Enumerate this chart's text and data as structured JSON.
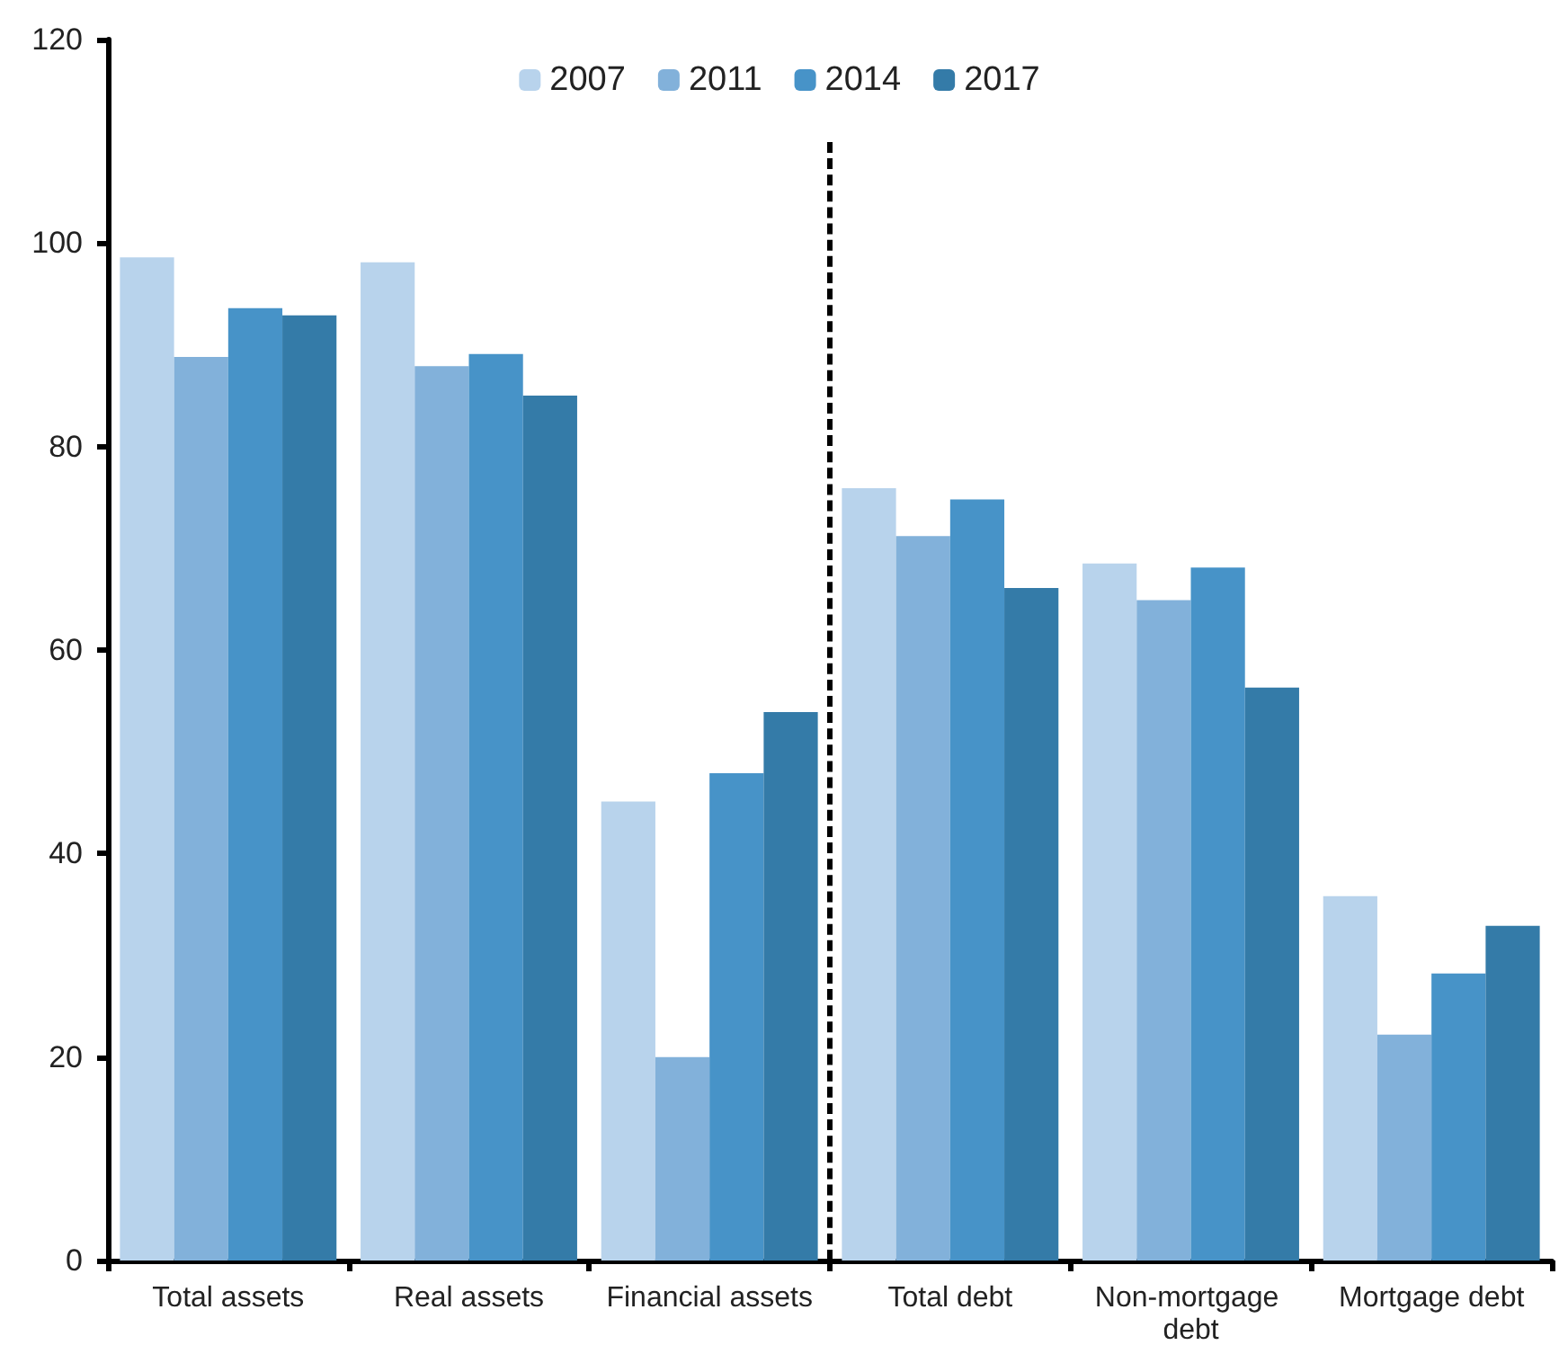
{
  "chart_data": {
    "type": "bar",
    "categories": [
      "Total assets",
      "Real assets",
      "Financial assets",
      "Total debt",
      "Non-mortgage debt",
      "Mortgage debt"
    ],
    "series": [
      {
        "name": "2007",
        "color": "#b8d3ec",
        "values": [
          98.6,
          98.1,
          45.1,
          75.9,
          68.5,
          35.8
        ]
      },
      {
        "name": "2011",
        "color": "#82b1da",
        "values": [
          88.8,
          87.9,
          20,
          71.2,
          64.9,
          22.2
        ]
      },
      {
        "name": "2014",
        "color": "#4793c8",
        "values": [
          93.6,
          89.1,
          47.9,
          74.8,
          68.1,
          28.2
        ]
      },
      {
        "name": "2017",
        "color": "#347ba8",
        "values": [
          92.9,
          85.0,
          53.9,
          66.1,
          56.3,
          32.9
        ]
      }
    ],
    "ylim": [
      0,
      120
    ],
    "yticks": [
      0,
      20,
      40,
      60,
      80,
      100,
      120
    ],
    "grid": false,
    "legend": "top"
  }
}
